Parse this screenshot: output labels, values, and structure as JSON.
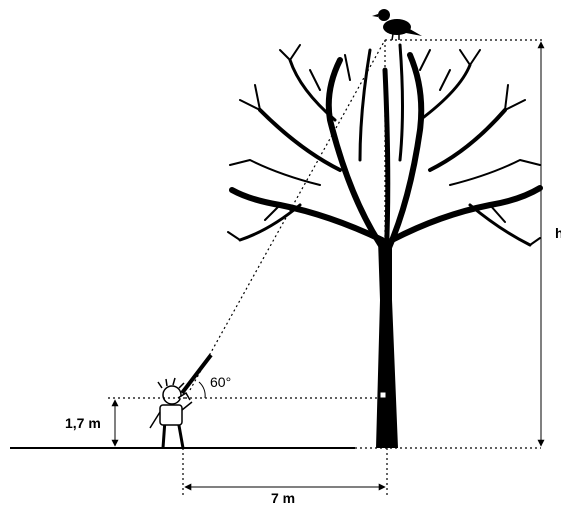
{
  "labels": {
    "angle": "60°",
    "eye_height": "1,7 m",
    "distance": "7 m",
    "tree_height": "h"
  }
}
